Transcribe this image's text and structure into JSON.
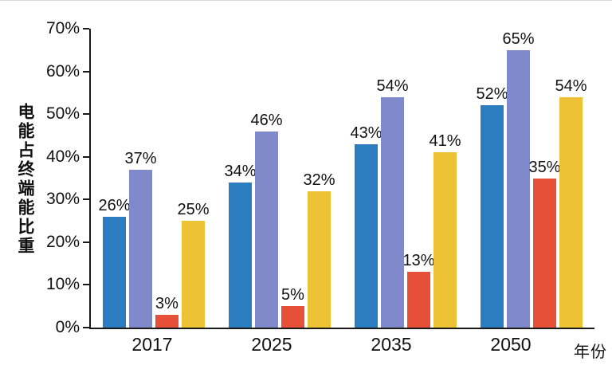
{
  "chart_data": {
    "type": "bar",
    "title": "",
    "ylabel": "电能占终端能比重",
    "xlabel": "年份",
    "ylim": [
      0,
      70
    ],
    "ytick_step": 10,
    "ytick_suffix": "%",
    "grid": false,
    "legend": "none",
    "categories": [
      "2017",
      "2025",
      "2035",
      "2050"
    ],
    "series": [
      {
        "name": "series-blue",
        "color": "#2b7dc0",
        "values": [
          26,
          34,
          43,
          52
        ]
      },
      {
        "name": "series-purple",
        "color": "#8089c9",
        "values": [
          37,
          46,
          54,
          65
        ]
      },
      {
        "name": "series-red",
        "color": "#e64f38",
        "values": [
          3,
          5,
          13,
          35
        ]
      },
      {
        "name": "series-yellow",
        "color": "#eec235",
        "values": [
          25,
          32,
          41,
          54
        ]
      }
    ],
    "data_labels": [
      [
        "26%",
        "34%",
        "43%",
        "52%"
      ],
      [
        "37%",
        "46%",
        "54%",
        "65%"
      ],
      [
        "3%",
        "5%",
        "13%",
        "35%"
      ],
      [
        "25%",
        "32%",
        "41%",
        "54%"
      ]
    ]
  }
}
